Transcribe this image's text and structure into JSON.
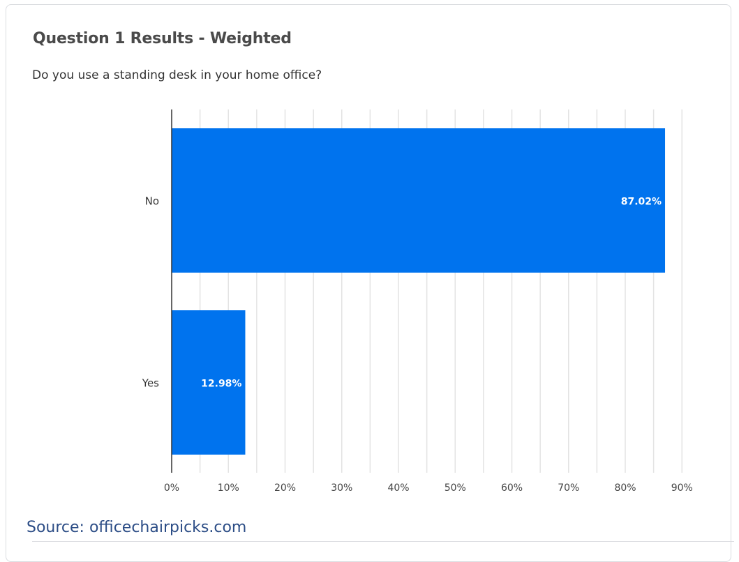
{
  "chart_data": {
    "type": "bar",
    "orientation": "horizontal",
    "title": "Question 1 Results - Weighted",
    "subtitle": "Do you use a standing desk in your home office?",
    "categories": [
      "No",
      "Yes"
    ],
    "values": [
      87.02,
      12.98
    ],
    "data_labels": [
      "87.02%",
      "12.98%"
    ],
    "x_ticks": [
      0,
      10,
      20,
      30,
      40,
      50,
      60,
      70,
      80,
      90
    ],
    "x_tick_labels": [
      "0%",
      "10%",
      "20%",
      "30%",
      "40%",
      "50%",
      "60%",
      "70%",
      "80%",
      "90%"
    ],
    "xlim": [
      0,
      90
    ],
    "grid": true,
    "bar_color": "#0073ee",
    "legend": "none"
  },
  "source": "Source: officechairpicks.com"
}
